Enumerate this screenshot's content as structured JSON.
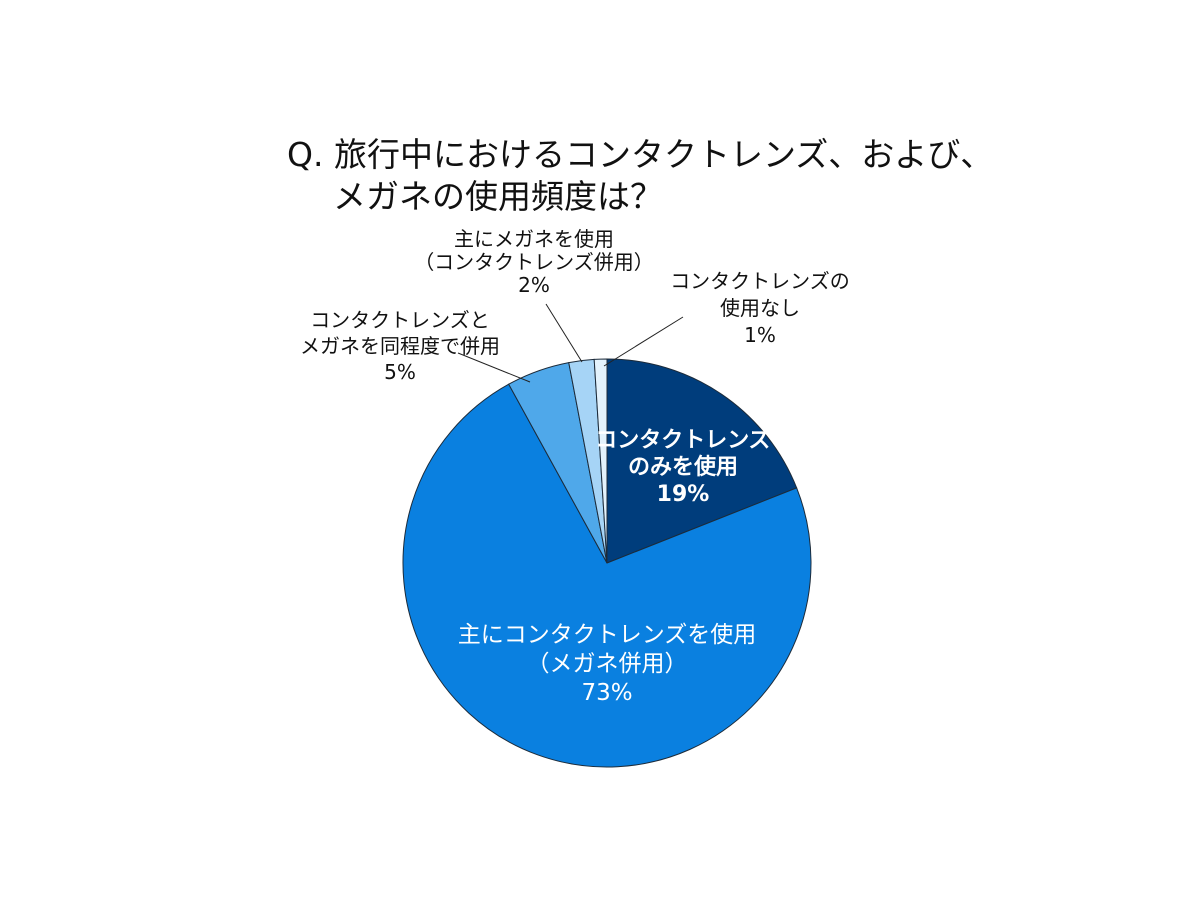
{
  "chart_data": {
    "type": "pie",
    "title": [
      "Q. 旅行中におけるコンタクトレンズ、および、",
      "メガネの使用頻度は？"
    ],
    "slices": [
      {
        "label": [
          "コンタクトレンズ",
          "のみを使用"
        ],
        "value": 19,
        "value_label": "19%",
        "color": "#003d7c"
      },
      {
        "label": [
          "主にコンタクトレンズを使用",
          "（メガネ併用）"
        ],
        "value": 73,
        "value_label": "73%",
        "color": "#0a80e0"
      },
      {
        "label": [
          "コンタクトレンズと",
          "メガネを同程度で併用"
        ],
        "value": 5,
        "value_label": "5%",
        "color": "#4fa8ea"
      },
      {
        "label": [
          "主にメガネを使用",
          "（コンタクトレンズ併用）"
        ],
        "value": 2,
        "value_label": "2%",
        "color": "#a6d4f6"
      },
      {
        "label": [
          "コンタクトレンズの",
          "使用なし"
        ],
        "value": 1,
        "value_label": "1%",
        "color": "#e3f2fc"
      }
    ]
  }
}
